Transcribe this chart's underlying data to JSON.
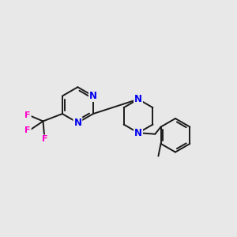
{
  "background_color": "#e8e8e8",
  "bond_color": "#1a1a1a",
  "n_color": "#0000ee",
  "f_color": "#ff00cc",
  "line_width": 1.4,
  "figsize": [
    3.0,
    3.0
  ],
  "dpi": 100,
  "xlim": [
    -4.5,
    5.0
  ],
  "ylim": [
    -3.5,
    3.5
  ]
}
